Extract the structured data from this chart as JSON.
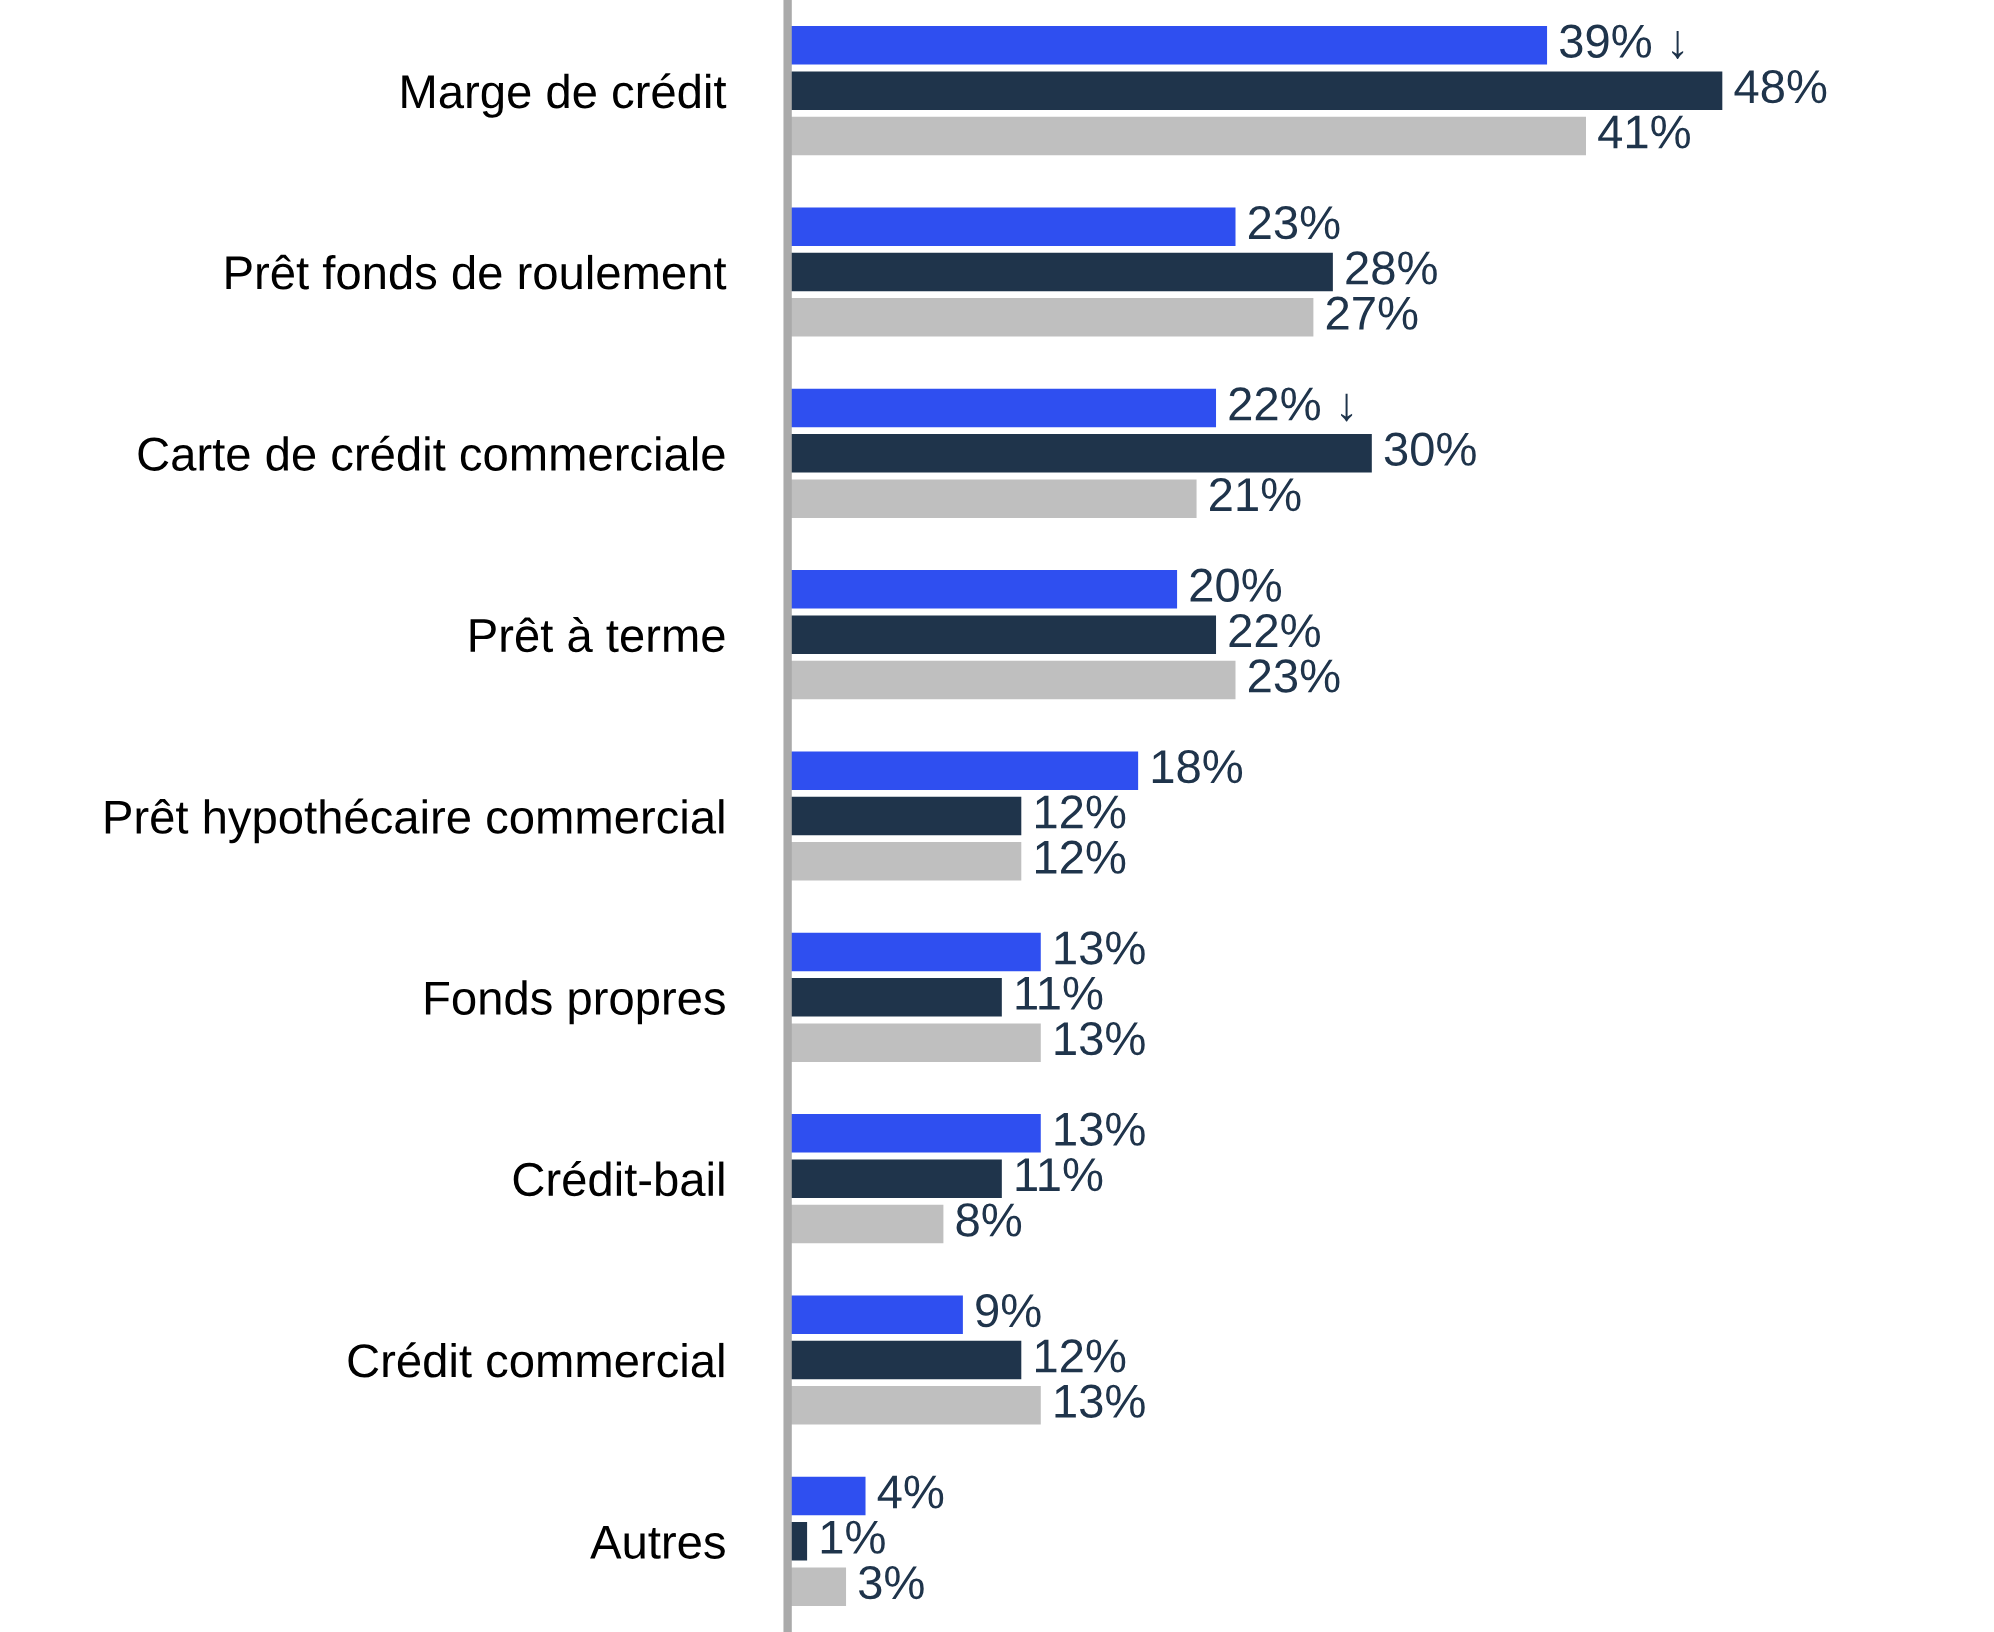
{
  "chart_data": {
    "type": "bar",
    "orientation": "horizontal",
    "tick_labels": "y",
    "grid": false,
    "legend": false,
    "categories": [
      "Marge de crédit",
      "Prêt fonds de roulement",
      "Carte de crédit commerciale",
      "Prêt à terme",
      "Prêt hypothécaire commercial",
      "Fonds propres",
      "Crédit-bail",
      "Crédit commercial",
      "Autres"
    ],
    "series": [
      {
        "color": "#2f4ff0",
        "values": [
          39,
          23,
          22,
          20,
          18,
          13,
          13,
          9,
          4
        ],
        "value_labels": [
          "39% ↓",
          "23%",
          "22% ↓",
          "20%",
          "18%",
          "13%",
          "13%",
          "9%",
          "4%"
        ]
      },
      {
        "color": "#1f344b",
        "values": [
          48,
          28,
          30,
          22,
          12,
          11,
          11,
          12,
          1
        ],
        "value_labels": [
          "48%",
          "28%",
          "30%",
          "22%",
          "12%",
          "11%",
          "11%",
          "12%",
          "1%"
        ]
      },
      {
        "color": "#bfbfbf",
        "values": [
          41,
          27,
          21,
          23,
          12,
          13,
          8,
          13,
          3
        ],
        "value_labels": [
          "41%",
          "27%",
          "21%",
          "23%",
          "12%",
          "13%",
          "8%",
          "13%",
          "3%"
        ]
      }
    ]
  }
}
